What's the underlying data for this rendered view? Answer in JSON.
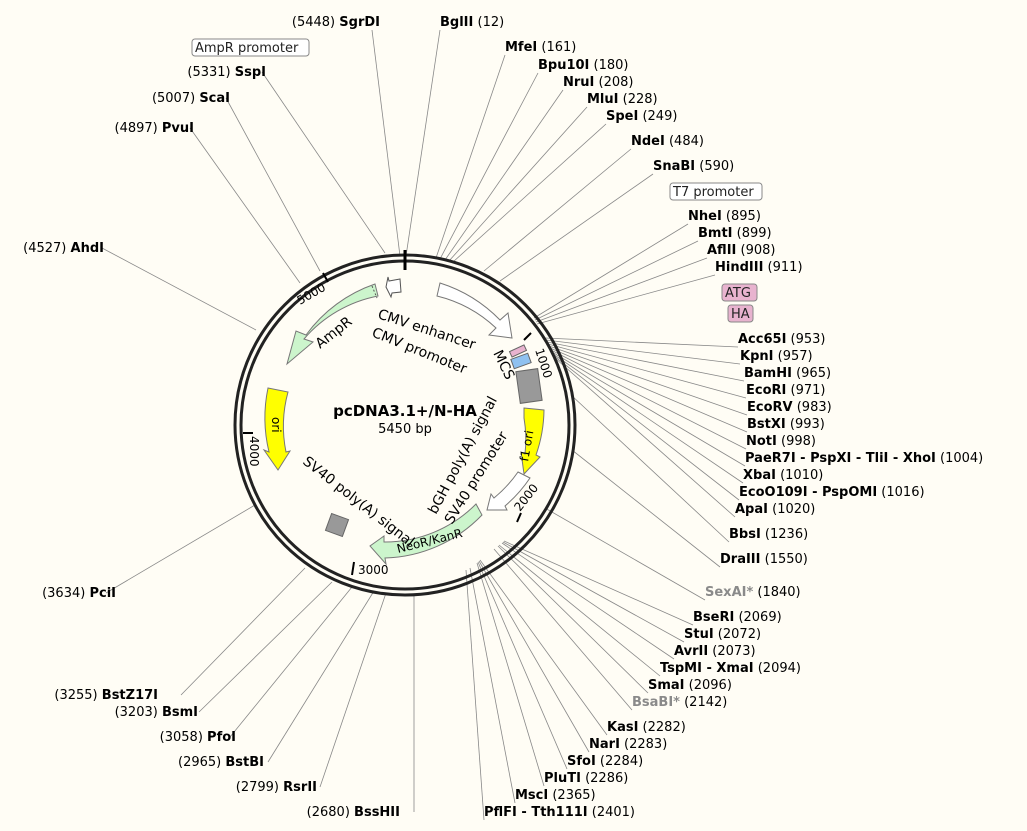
{
  "plasmid": {
    "name": "pcDNA3.1+/N-HA",
    "size_label": "5450 bp"
  },
  "features": {
    "ampr": "AmpR",
    "cmv_enhancer": "CMV enhancer",
    "cmv_promoter": "CMV promoter",
    "mcs": "MCS",
    "f1_ori": "f1 ori",
    "bgh": "bGH poly(A) signal",
    "sv40_promoter": "SV40 promoter",
    "neor": "NeoR/KanR",
    "sv40_polya": "SV40 poly(A) signal",
    "ori": "ori"
  },
  "boxed_labels": {
    "ampr_promoter": "AmpR promoter",
    "t7_promoter": "T7 promoter",
    "atg": "ATG",
    "ha": "HA"
  },
  "ticks": [
    "1000",
    "2000",
    "3000",
    "4000",
    "5000"
  ],
  "sites": [
    {
      "name": "SgrDI",
      "pos": "(5448)"
    },
    {
      "name": "BglII",
      "pos": "(12)"
    },
    {
      "name": "MfeI",
      "pos": "(161)"
    },
    {
      "name": "Bpu10I",
      "pos": "(180)"
    },
    {
      "name": "NruI",
      "pos": "(208)"
    },
    {
      "name": "MluI",
      "pos": "(228)"
    },
    {
      "name": "SpeI",
      "pos": "(249)"
    },
    {
      "name": "NdeI",
      "pos": "(484)"
    },
    {
      "name": "SnaBI",
      "pos": "(590)"
    },
    {
      "name": "NheI",
      "pos": "(895)"
    },
    {
      "name": "BmtI",
      "pos": "(899)"
    },
    {
      "name": "AflII",
      "pos": "(908)"
    },
    {
      "name": "HindIII",
      "pos": "(911)"
    },
    {
      "name": "Acc65I",
      "pos": "(953)"
    },
    {
      "name": "KpnI",
      "pos": "(957)"
    },
    {
      "name": "BamHI",
      "pos": "(965)"
    },
    {
      "name": "EcoRI",
      "pos": "(971)"
    },
    {
      "name": "EcoRV",
      "pos": "(983)"
    },
    {
      "name": "BstXI",
      "pos": "(993)"
    },
    {
      "name": "NotI",
      "pos": "(998)"
    },
    {
      "name": "PaeR7I - PspXI - TliI - XhoI",
      "pos": "(1004)"
    },
    {
      "name": "XbaI",
      "pos": "(1010)"
    },
    {
      "name": "EcoO109I - PspOMI",
      "pos": "(1016)"
    },
    {
      "name": "ApaI",
      "pos": "(1020)"
    },
    {
      "name": "BbsI",
      "pos": "(1236)"
    },
    {
      "name": "DraIII",
      "pos": "(1550)"
    },
    {
      "name": "SexAI*",
      "pos": "(1840)"
    },
    {
      "name": "BseRI",
      "pos": "(2069)"
    },
    {
      "name": "StuI",
      "pos": "(2072)"
    },
    {
      "name": "AvrII",
      "pos": "(2073)"
    },
    {
      "name": "TspMI - XmaI",
      "pos": "(2094)"
    },
    {
      "name": "SmaI",
      "pos": "(2096)"
    },
    {
      "name": "BsaBI*",
      "pos": "(2142)"
    },
    {
      "name": "KasI",
      "pos": "(2282)"
    },
    {
      "name": "NarI",
      "pos": "(2283)"
    },
    {
      "name": "SfoI",
      "pos": "(2284)"
    },
    {
      "name": "PluTI",
      "pos": "(2286)"
    },
    {
      "name": "MscI",
      "pos": "(2365)"
    },
    {
      "name": "PflFI - Tth111I",
      "pos": "(2401)"
    },
    {
      "name": "BssHII",
      "pos": "(2680)"
    },
    {
      "name": "RsrII",
      "pos": "(2799)"
    },
    {
      "name": "BstBI",
      "pos": "(2965)"
    },
    {
      "name": "PfoI",
      "pos": "(3058)"
    },
    {
      "name": "BsmI",
      "pos": "(3203)"
    },
    {
      "name": "BstZ17I",
      "pos": "(3255)"
    },
    {
      "name": "PciI",
      "pos": "(3634)"
    },
    {
      "name": "AhdI",
      "pos": "(4527)"
    },
    {
      "name": "PvuI",
      "pos": "(4897)"
    },
    {
      "name": "ScaI",
      "pos": "(5007)"
    },
    {
      "name": "SspI",
      "pos": "(5331)"
    }
  ],
  "colors": {
    "background": "#fffdf5",
    "backbone": "#222222",
    "ampr_fill": "#ccf5cc",
    "ori_fill": "#ffff00",
    "promoter_fill": "#ffffff",
    "gray_feature": "#999999",
    "atg_box": "#e8b3cf",
    "ha_box": "#e8b3cf",
    "mcs_blue": "#8fc1f0",
    "leader_line": "#888888"
  }
}
